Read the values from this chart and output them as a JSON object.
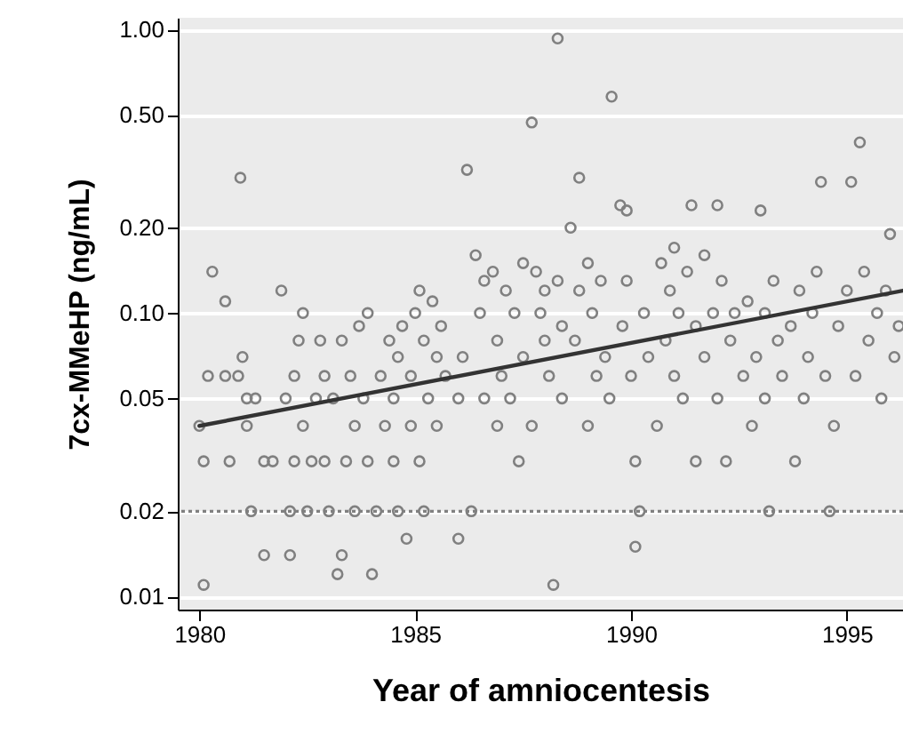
{
  "chart_data": {
    "type": "scatter",
    "xlabel": "Year of amniocentesis",
    "ylabel": "7cx-MMeHP (ng/mL)",
    "log": "y",
    "grid": "y",
    "marker": "circle",
    "xlim": [
      1979.5,
      1996.3
    ],
    "xticks": [
      1980,
      1985,
      1990,
      1995
    ],
    "ylim": [
      0.009,
      1.1
    ],
    "yticks": [
      {
        "value": 1,
        "label": "1.00"
      },
      {
        "value": 0.5,
        "label": "0.50"
      },
      {
        "value": 0.2,
        "label": "0.20"
      },
      {
        "value": 0.1,
        "label": "0.10"
      },
      {
        "value": 0.05,
        "label": "0.05"
      },
      {
        "value": 0.02,
        "label": "0.02"
      },
      {
        "value": 0.01,
        "label": "0.01"
      }
    ],
    "ref_lines": [
      {
        "axis": "y",
        "value": 0.02,
        "color": "#808080",
        "line_style": "dotted"
      }
    ],
    "series": [
      {
        "color": "#808080",
        "x": [
          1980.0,
          1980.1,
          1980.1,
          1980.2,
          1980.3,
          1980.6,
          1980.9,
          1980.6,
          1980.7,
          1980.95,
          1981.1,
          1981.0,
          1981.2,
          1981.1,
          1981.3,
          1981.5,
          1981.5,
          1981.7,
          1981.9,
          1982.1,
          1982.0,
          1982.1,
          1982.2,
          1982.2,
          1982.3,
          1982.4,
          1982.4,
          1982.5,
          1982.6,
          1982.7,
          1982.8,
          1982.9,
          1982.9,
          1983.0,
          1983.2,
          1983.3,
          1983.1,
          1983.3,
          1983.4,
          1983.5,
          1983.6,
          1983.6,
          1983.7,
          1983.8,
          1983.9,
          1983.9,
          1984.0,
          1984.1,
          1984.2,
          1984.3,
          1984.4,
          1984.5,
          1984.5,
          1984.6,
          1984.6,
          1984.7,
          1984.8,
          1984.9,
          1984.9,
          1985.0,
          1985.1,
          1985.1,
          1985.2,
          1985.2,
          1985.3,
          1985.4,
          1985.5,
          1985.5,
          1985.6,
          1985.7,
          1986.0,
          1986.0,
          1986.1,
          1986.2,
          1986.4,
          1986.3,
          1986.5,
          1986.6,
          1986.6,
          1986.8,
          1986.9,
          1986.9,
          1987.0,
          1987.1,
          1987.2,
          1987.3,
          1987.4,
          1987.5,
          1987.5,
          1987.7,
          1987.7,
          1987.8,
          1987.9,
          1988.0,
          1988.0,
          1988.1,
          1988.2,
          1988.3,
          1988.3,
          1988.4,
          1988.4,
          1988.6,
          1988.8,
          1988.7,
          1988.8,
          1989.0,
          1989.0,
          1989.1,
          1989.2,
          1989.3,
          1989.4,
          1989.55,
          1989.5,
          1989.75,
          1989.9,
          1989.8,
          1989.9,
          1990.0,
          1990.2,
          1990.1,
          1990.1,
          1990.3,
          1990.4,
          1990.6,
          1990.7,
          1990.8,
          1990.9,
          1991.0,
          1991.0,
          1991.1,
          1991.2,
          1991.3,
          1991.4,
          1991.5,
          1991.5,
          1991.7,
          1991.7,
          1991.9,
          1992.0,
          1992.0,
          1992.1,
          1992.2,
          1992.3,
          1992.4,
          1992.6,
          1992.7,
          1992.8,
          1992.9,
          1993.0,
          1993.1,
          1993.1,
          1993.2,
          1993.3,
          1993.4,
          1993.5,
          1993.7,
          1993.8,
          1993.9,
          1994.0,
          1994.1,
          1994.2,
          1994.3,
          1994.4,
          1994.5,
          1994.6,
          1994.7,
          1994.8,
          1995.0,
          1995.1,
          1995.2,
          1995.3,
          1995.4,
          1995.5,
          1995.7,
          1995.8,
          1996.0,
          1995.9,
          1996.1,
          1996.2
        ],
        "values": [
          0.04,
          0.011,
          0.03,
          0.06,
          0.14,
          0.06,
          0.06,
          0.11,
          0.03,
          0.3,
          0.05,
          0.07,
          0.02,
          0.04,
          0.05,
          0.03,
          0.014,
          0.03,
          0.12,
          0.014,
          0.05,
          0.02,
          0.03,
          0.06,
          0.08,
          0.1,
          0.04,
          0.02,
          0.03,
          0.05,
          0.08,
          0.06,
          0.03,
          0.02,
          0.012,
          0.014,
          0.05,
          0.08,
          0.03,
          0.06,
          0.02,
          0.04,
          0.09,
          0.05,
          0.03,
          0.1,
          0.012,
          0.02,
          0.06,
          0.04,
          0.08,
          0.05,
          0.03,
          0.02,
          0.07,
          0.09,
          0.016,
          0.04,
          0.06,
          0.1,
          0.12,
          0.03,
          0.02,
          0.08,
          0.05,
          0.11,
          0.07,
          0.04,
          0.09,
          0.06,
          0.016,
          0.05,
          0.07,
          0.32,
          0.16,
          0.02,
          0.1,
          0.13,
          0.05,
          0.14,
          0.08,
          0.04,
          0.06,
          0.12,
          0.05,
          0.1,
          0.03,
          0.07,
          0.15,
          0.47,
          0.04,
          0.14,
          0.1,
          0.08,
          0.12,
          0.06,
          0.011,
          0.93,
          0.13,
          0.09,
          0.05,
          0.2,
          0.3,
          0.08,
          0.12,
          0.15,
          0.04,
          0.1,
          0.06,
          0.13,
          0.07,
          0.58,
          0.05,
          0.24,
          0.23,
          0.09,
          0.13,
          0.06,
          0.02,
          0.03,
          0.015,
          0.1,
          0.07,
          0.04,
          0.15,
          0.08,
          0.12,
          0.17,
          0.06,
          0.1,
          0.05,
          0.14,
          0.24,
          0.09,
          0.03,
          0.16,
          0.07,
          0.1,
          0.24,
          0.05,
          0.13,
          0.03,
          0.08,
          0.1,
          0.06,
          0.11,
          0.04,
          0.07,
          0.23,
          0.1,
          0.05,
          0.02,
          0.13,
          0.08,
          0.06,
          0.09,
          0.03,
          0.12,
          0.05,
          0.07,
          0.1,
          0.14,
          0.29,
          0.06,
          0.02,
          0.04,
          0.09,
          0.12,
          0.29,
          0.06,
          0.4,
          0.14,
          0.08,
          0.1,
          0.05,
          0.19,
          0.12,
          0.07,
          0.09
        ]
      },
      {
        "type": "line",
        "marker": "none",
        "color": "#333333",
        "x": [
          1980,
          1996.3
        ],
        "values": [
          0.04,
          0.12
        ]
      }
    ]
  }
}
